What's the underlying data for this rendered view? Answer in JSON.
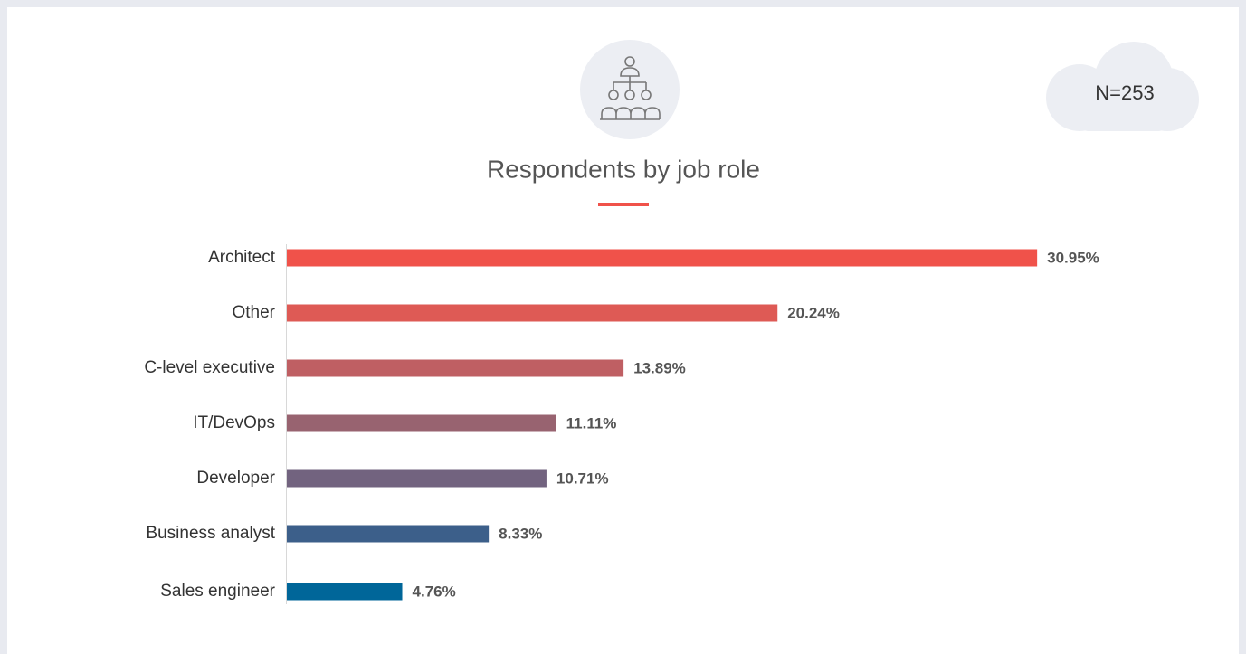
{
  "chart_data": {
    "type": "bar",
    "orientation": "horizontal",
    "title": "Respondents by job role",
    "annotation": "N=253",
    "categories": [
      "Architect",
      "Other",
      "C-level executive",
      "IT/DevOps",
      "Developer",
      "Business analyst",
      "Sales engineer"
    ],
    "values": [
      30.95,
      20.24,
      13.89,
      11.11,
      10.71,
      8.33,
      4.76
    ],
    "value_labels": [
      "30.95%",
      "20.24%",
      "13.89%",
      "11.11%",
      "10.71%",
      "8.33%",
      "4.76%"
    ],
    "colors": [
      "#f0524a",
      "#de5a55",
      "#bf5f63",
      "#986370",
      "#72637f",
      "#3c5f8a",
      "#006699"
    ],
    "xlim": [
      0,
      35
    ]
  }
}
